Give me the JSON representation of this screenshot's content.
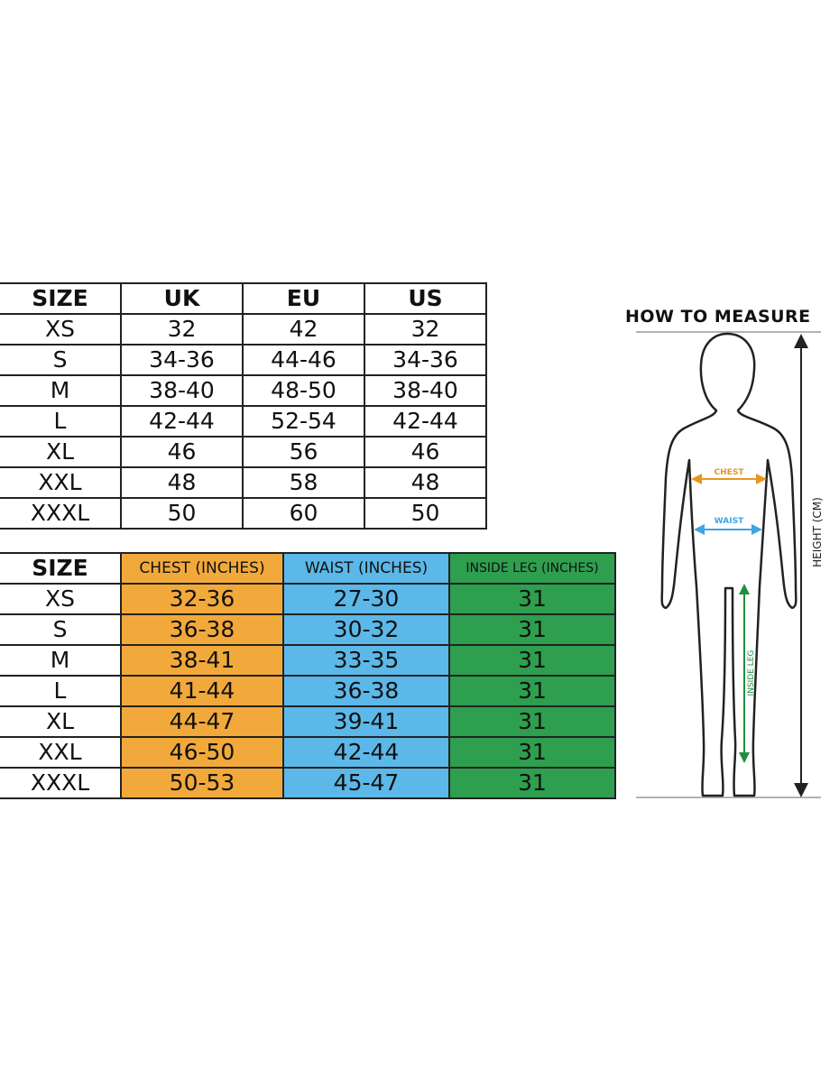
{
  "conversion_table": {
    "headers": [
      "SIZE",
      "UK",
      "EU",
      "US"
    ],
    "rows": [
      [
        "XS",
        "32",
        "42",
        "32"
      ],
      [
        "S",
        "34-36",
        "44-46",
        "34-36"
      ],
      [
        "M",
        "38-40",
        "48-50",
        "38-40"
      ],
      [
        "L",
        "42-44",
        "52-54",
        "42-44"
      ],
      [
        "XL",
        "46",
        "56",
        "46"
      ],
      [
        "XXL",
        "48",
        "58",
        "48"
      ],
      [
        "XXXL",
        "50",
        "60",
        "50"
      ]
    ]
  },
  "measurement_table": {
    "headers": [
      "SIZE",
      "CHEST (INCHES)",
      "WAIST (INCHES)",
      "INSIDE LEG (INCHES)"
    ],
    "rows": [
      [
        "XS",
        "32-36",
        "27-30",
        "31"
      ],
      [
        "S",
        "36-38",
        "30-32",
        "31"
      ],
      [
        "M",
        "38-41",
        "33-35",
        "31"
      ],
      [
        "L",
        "41-44",
        "36-38",
        "31"
      ],
      [
        "XL",
        "44-47",
        "39-41",
        "31"
      ],
      [
        "XXL",
        "46-50",
        "42-44",
        "31"
      ],
      [
        "XXXL",
        "50-53",
        "45-47",
        "31"
      ]
    ],
    "colors": {
      "chest": "#F2A93B",
      "waist": "#5BB8E8",
      "inside_leg": "#2E9E4F"
    }
  },
  "diagram": {
    "title": "HOW TO MEASURE",
    "chest_label": "CHEST",
    "waist_label": "WAIST",
    "inside_leg_label": "INSIDE LEG",
    "height_label": "HEIGHT (CM)"
  }
}
